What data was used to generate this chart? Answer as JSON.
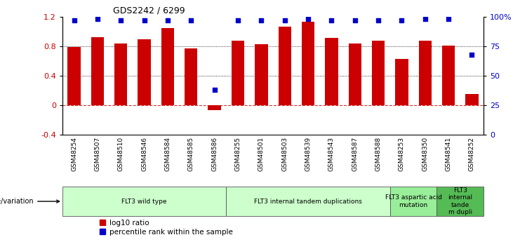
{
  "title": "GDS2242 / 6299",
  "samples": [
    "GSM48254",
    "GSM48507",
    "GSM48510",
    "GSM48546",
    "GSM48584",
    "GSM48585",
    "GSM48586",
    "GSM48255",
    "GSM48501",
    "GSM48503",
    "GSM48539",
    "GSM48543",
    "GSM48587",
    "GSM48588",
    "GSM48253",
    "GSM48350",
    "GSM48541",
    "GSM48252"
  ],
  "log10_ratio": [
    0.79,
    0.92,
    0.84,
    0.9,
    1.05,
    0.77,
    -0.07,
    0.88,
    0.83,
    1.07,
    1.13,
    0.91,
    0.84,
    0.88,
    0.63,
    0.88,
    0.81,
    0.15
  ],
  "percentile_rank": [
    97,
    98,
    97,
    97,
    97,
    97,
    38,
    97,
    97,
    97,
    98,
    97,
    97,
    97,
    97,
    98,
    98,
    68
  ],
  "groups": [
    {
      "label": "FLT3 wild type",
      "start": 0,
      "end": 6,
      "color": "#ccffcc"
    },
    {
      "label": "FLT3 internal tandem duplications",
      "start": 7,
      "end": 13,
      "color": "#ccffcc"
    },
    {
      "label": "FLT3 aspartic acid\nmutation",
      "start": 14,
      "end": 15,
      "color": "#99ee99"
    },
    {
      "label": "FLT3\ninternal\ntande\nm dupli",
      "start": 16,
      "end": 17,
      "color": "#55bb55"
    }
  ],
  "bar_color": "#cc0000",
  "dot_color": "#0000cc",
  "ylim_left": [
    -0.4,
    1.2
  ],
  "ylim_right": [
    0,
    100
  ],
  "yticks_left": [
    -0.4,
    0.0,
    0.4,
    0.8,
    1.2
  ],
  "ytick_labels_left": [
    "-0.4",
    "0",
    "0.4",
    "0.8",
    "1.2"
  ],
  "yticks_right": [
    0,
    25,
    50,
    75,
    100
  ],
  "ytick_labels_right": [
    "0",
    "25",
    "50",
    "75",
    "100%"
  ],
  "dotted_lines": [
    0.4,
    0.8
  ],
  "bar_width": 0.55,
  "legend_labels": [
    "log10 ratio",
    "percentile rank within the sample"
  ],
  "genotype_label": "genotype/variation",
  "xlabel_bg": "#d8d8d8"
}
